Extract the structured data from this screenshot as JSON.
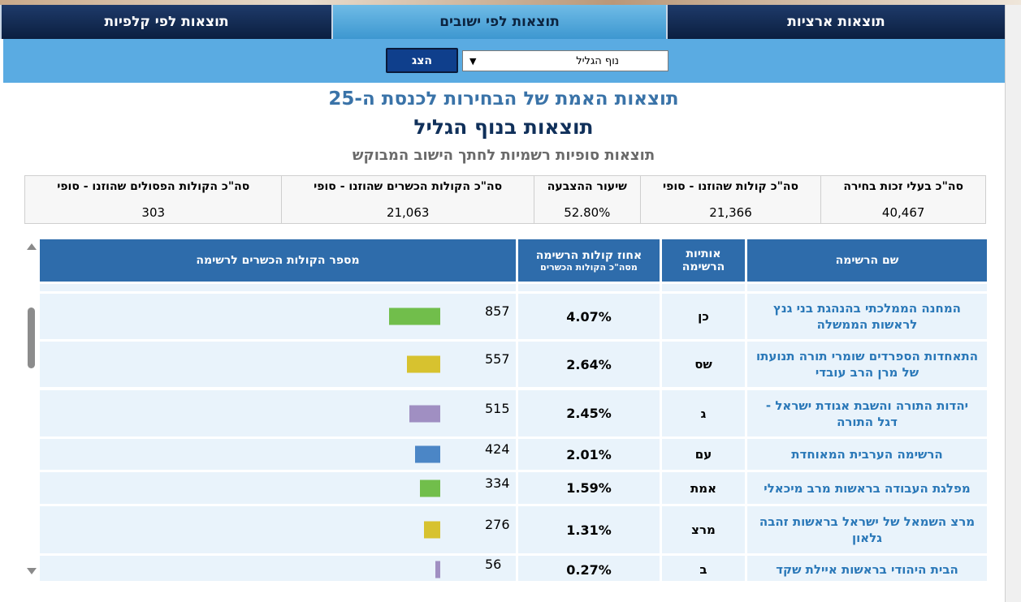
{
  "tabs": [
    {
      "label": "תוצאות לפי קלפיות",
      "active": false
    },
    {
      "label": "תוצאות לפי ישובים",
      "active": true
    },
    {
      "label": "תוצאות ארציות",
      "active": false
    }
  ],
  "filter": {
    "selected_city": "נוף הגליל",
    "show_button": "הצג"
  },
  "titles": {
    "main": "תוצאות האמת של הבחירות לכנסת ה-25",
    "city": "תוצאות בנוף הגליל",
    "sub": "תוצאות סופיות רשמיות לחתך הישוב המבוקש"
  },
  "summary": [
    {
      "label": "סה\"כ הקולות הפסולים שהוזנו - סופי",
      "value": "303"
    },
    {
      "label": "סה\"כ הקולות הכשרים שהוזנו - סופי",
      "value": "21,063"
    },
    {
      "label": "שיעור ההצבעה",
      "value": "52.80%"
    },
    {
      "label": "סה\"כ קולות שהוזנו - סופי",
      "value": "21,366"
    },
    {
      "label": "סה\"כ בעלי זכות בחירה",
      "value": "40,467"
    }
  ],
  "table": {
    "headers": {
      "votes": "מספר הקולות הכשרים לרשימה",
      "pct": "אחוז קולות הרשימה",
      "pct_sub": "מסה\"כ הקולות הכשרים",
      "letters": "אותיות הרשימה",
      "name": "שם הרשימה"
    },
    "rows": [
      {
        "name": "המחנה הממלכתי בהנהגת בני גנץ לראשות הממשלה",
        "letters": "כן",
        "pct": "4.07%",
        "votes": "857",
        "votes_n": 857,
        "color": "#71be4b"
      },
      {
        "name": "התאחדות הספרדים שומרי תורה תנועתו של מרן הרב עובדי",
        "letters": "שס",
        "pct": "2.64%",
        "votes": "557",
        "votes_n": 557,
        "color": "#d7c22f"
      },
      {
        "name": "יהדות התורה והשבת אגודת ישראל - דגל התורה",
        "letters": "ג",
        "pct": "2.45%",
        "votes": "515",
        "votes_n": 515,
        "color": "#a08fc2"
      },
      {
        "name": "הרשימה הערבית המאוחדת",
        "letters": "עם",
        "pct": "2.01%",
        "votes": "424",
        "votes_n": 424,
        "color": "#4b86c6"
      },
      {
        "name": "מפלגת העבודה בראשות מרב מיכאלי",
        "letters": "אמת",
        "pct": "1.59%",
        "votes": "334",
        "votes_n": 334,
        "color": "#71be4b"
      },
      {
        "name": "מרצ השמאל של ישראל בראשות זהבה גלאון",
        "letters": "מרצ",
        "pct": "1.31%",
        "votes": "276",
        "votes_n": 276,
        "color": "#d7c22f"
      },
      {
        "name": "הבית היהודי בראשות איילת שקד",
        "letters": "ב",
        "pct": "0.27%",
        "votes": "56",
        "votes_n": 56,
        "color": "#a08fc2"
      }
    ]
  }
}
